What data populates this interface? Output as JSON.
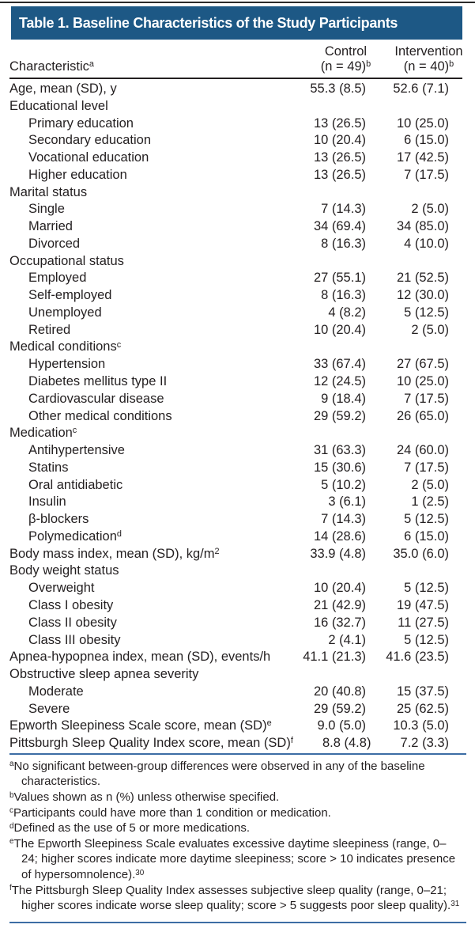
{
  "colors": {
    "header_bg": "#1d5885",
    "rule_blue": "#3c6da4",
    "top_rule": "#2b2b2b",
    "text": "#231f20"
  },
  "table": {
    "title": "Table 1. Baseline Characteristics of the Study Participants",
    "columns": {
      "characteristic": "Characteristic",
      "characteristic_sup": "a",
      "control_line1": "Control",
      "control_n": "(n = 49)",
      "control_sup": "b",
      "intervention_line1": "Intervention",
      "intervention_n": "(n = 40)",
      "intervention_sup": "b"
    },
    "rows": [
      {
        "label": "Age, mean (SD), y",
        "indent": 0,
        "control": "55.3 (8.5)",
        "intervention": "52.6 (7.1)"
      },
      {
        "label": "Educational level",
        "indent": 0,
        "control": "",
        "intervention": ""
      },
      {
        "label": "Primary education",
        "indent": 1,
        "control": "13 (26.5)",
        "intervention": "10 (25.0)"
      },
      {
        "label": "Secondary education",
        "indent": 1,
        "control": "10 (20.4)",
        "intervention": "6 (15.0)"
      },
      {
        "label": "Vocational education",
        "indent": 1,
        "control": "13 (26.5)",
        "intervention": "17 (42.5)"
      },
      {
        "label": "Higher education",
        "indent": 1,
        "control": "13 (26.5)",
        "intervention": "7 (17.5)"
      },
      {
        "label": "Marital status",
        "indent": 0,
        "control": "",
        "intervention": ""
      },
      {
        "label": "Single",
        "indent": 1,
        "control": "7 (14.3)",
        "intervention": "2 (5.0)"
      },
      {
        "label": "Married",
        "indent": 1,
        "control": "34 (69.4)",
        "intervention": "34 (85.0)"
      },
      {
        "label": "Divorced",
        "indent": 1,
        "control": "8 (16.3)",
        "intervention": "4 (10.0)"
      },
      {
        "label": "Occupational status",
        "indent": 0,
        "control": "",
        "intervention": ""
      },
      {
        "label": "Employed",
        "indent": 1,
        "control": "27 (55.1)",
        "intervention": "21 (52.5)"
      },
      {
        "label": "Self-employed",
        "indent": 1,
        "control": "8 (16.3)",
        "intervention": "12 (30.0)"
      },
      {
        "label": "Unemployed",
        "indent": 1,
        "control": "4 (8.2)",
        "intervention": "5 (12.5)"
      },
      {
        "label": "Retired",
        "indent": 1,
        "control": "10 (20.4)",
        "intervention": "2 (5.0)"
      },
      {
        "label": "Medical conditions",
        "sup": "c",
        "indent": 0,
        "control": "",
        "intervention": ""
      },
      {
        "label": "Hypertension",
        "indent": 1,
        "control": "33 (67.4)",
        "intervention": "27 (67.5)"
      },
      {
        "label": "Diabetes mellitus type II",
        "indent": 1,
        "control": "12 (24.5)",
        "intervention": "10 (25.0)"
      },
      {
        "label": "Cardiovascular disease",
        "indent": 1,
        "control": "9 (18.4)",
        "intervention": "7 (17.5)"
      },
      {
        "label": "Other medical conditions",
        "indent": 1,
        "control": "29 (59.2)",
        "intervention": "26 (65.0)"
      },
      {
        "label": "Medication",
        "sup": "c",
        "indent": 0,
        "control": "",
        "intervention": ""
      },
      {
        "label": "Antihypertensive",
        "indent": 1,
        "control": "31 (63.3)",
        "intervention": "24 (60.0)"
      },
      {
        "label": "Statins",
        "indent": 1,
        "control": "15 (30.6)",
        "intervention": "7 (17.5)"
      },
      {
        "label": "Oral antidiabetic",
        "indent": 1,
        "control": "5 (10.2)",
        "intervention": "2 (5.0)"
      },
      {
        "label": "Insulin",
        "indent": 1,
        "control": "3 (6.1)",
        "intervention": "1 (2.5)"
      },
      {
        "label": "β-blockers",
        "indent": 1,
        "control": "7 (14.3)",
        "intervention": "5 (12.5)"
      },
      {
        "label": "Polymedication",
        "sup": "d",
        "indent": 1,
        "control": "14 (28.6)",
        "intervention": "6 (15.0)"
      },
      {
        "label": "Body mass index, mean (SD), kg/m",
        "sup": "2",
        "indent": 0,
        "control": "33.9 (4.8)",
        "intervention": "35.0 (6.0)"
      },
      {
        "label": "Body weight status",
        "indent": 0,
        "control": "",
        "intervention": ""
      },
      {
        "label": "Overweight",
        "indent": 1,
        "control": "10 (20.4)",
        "intervention": "5 (12.5)"
      },
      {
        "label": "Class I obesity",
        "indent": 1,
        "control": "21 (42.9)",
        "intervention": "19 (47.5)"
      },
      {
        "label": "Class II obesity",
        "indent": 1,
        "control": "16 (32.7)",
        "intervention": "11 (27.5)"
      },
      {
        "label": "Class III obesity",
        "indent": 1,
        "control": "2 (4.1)",
        "intervention": "5 (12.5)"
      },
      {
        "label": "Apnea-hypopnea index, mean (SD), events/h",
        "indent": 0,
        "control": "41.1 (21.3)",
        "intervention": "41.6 (23.5)"
      },
      {
        "label": "Obstructive sleep apnea severity",
        "indent": 0,
        "control": "",
        "intervention": ""
      },
      {
        "label": "Moderate",
        "indent": 1,
        "control": "20 (40.8)",
        "intervention": "15 (37.5)"
      },
      {
        "label": "Severe",
        "indent": 1,
        "control": "29 (59.2)",
        "intervention": "25 (62.5)"
      },
      {
        "label": "Epworth Sleepiness Scale score, mean (SD)",
        "sup": "e",
        "indent": 0,
        "control": "9.0 (5.0)",
        "intervention": "10.3 (5.0)"
      },
      {
        "label": "Pittsburgh Sleep Quality Index score, mean (SD)",
        "sup": "f",
        "indent": 0,
        "control": "8.8 (4.8)",
        "intervention": "7.2 (3.3)"
      }
    ],
    "footnotes": [
      {
        "marker": "a",
        "text": "No significant between-group differences were observed in any of the baseline characteristics.",
        "ref": ""
      },
      {
        "marker": "b",
        "text": "Values shown as n (%) unless otherwise specified.",
        "ref": ""
      },
      {
        "marker": "c",
        "text": "Participants could have more than 1 condition or medication.",
        "ref": ""
      },
      {
        "marker": "d",
        "text": "Defined as the use of 5 or more medications.",
        "ref": ""
      },
      {
        "marker": "e",
        "text": "The Epworth Sleepiness Scale evaluates excessive daytime sleepiness (range, 0–24; higher scores indicate more daytime sleepiness; score > 10 indicates presence of hypersomnolence).",
        "ref": "30"
      },
      {
        "marker": "f",
        "text": "The Pittsburgh Sleep Quality Index assesses subjective sleep quality (range, 0–21; higher scores indicate worse sleep quality; score > 5 suggests poor sleep quality).",
        "ref": "31"
      }
    ]
  }
}
